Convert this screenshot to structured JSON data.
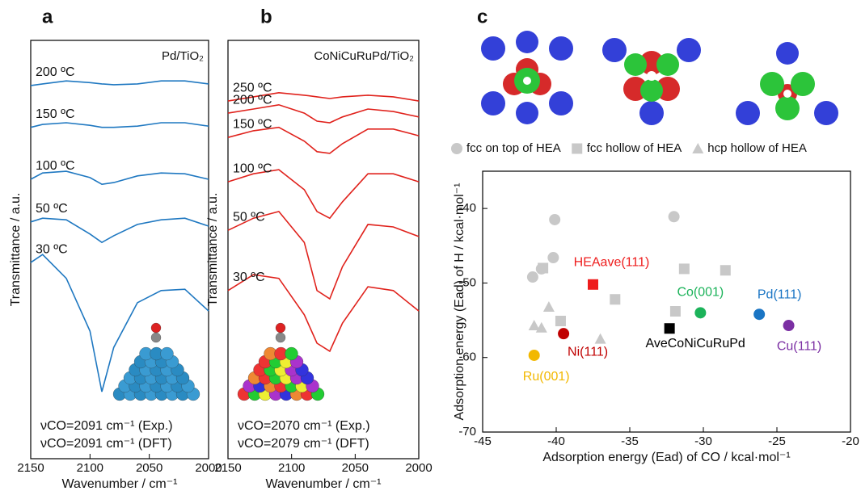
{
  "chart_data": [
    {
      "type": "line",
      "panel_label": "a",
      "xlabel": "Wavenumber / cm⁻¹",
      "ylabel": "Transmittance / a.u.",
      "annotations": [
        "Pd/TiO₂",
        "νCO=2091 cm⁻¹ (Exp.)",
        "νCO=2091 cm⁻¹ (DFT)"
      ],
      "xlim": [
        2150,
        2000
      ],
      "xticks": [
        2150,
        2100,
        2050,
        2000
      ],
      "ylim": [
        0,
        100
      ],
      "x": [
        2150,
        2140,
        2120,
        2100,
        2090,
        2080,
        2060,
        2040,
        2020,
        2000
      ],
      "series": [
        {
          "name": "200 ºC",
          "color": "#1f78c1",
          "values": [
            89.2,
            89.6,
            90.3,
            89.9,
            89.6,
            89.4,
            89.6,
            90.3,
            90.3,
            89.6
          ]
        },
        {
          "name": "150 ºC",
          "color": "#1f78c1",
          "values": [
            79.2,
            79.9,
            80.3,
            79.7,
            79.2,
            79.2,
            79.5,
            80.3,
            80.3,
            79.5
          ]
        },
        {
          "name": "100 ºC",
          "color": "#1f78c1",
          "values": [
            66.8,
            68.3,
            68.7,
            67.2,
            65.6,
            66.0,
            67.6,
            68.3,
            68.1,
            66.8
          ]
        },
        {
          "name": "50 ºC",
          "color": "#1f78c1",
          "values": [
            56.6,
            57.5,
            57.1,
            53.7,
            51.7,
            53.3,
            56.0,
            57.1,
            57.5,
            55.6
          ]
        },
        {
          "name": "30 ºC",
          "color": "#1f78c1",
          "values": [
            46.9,
            48.8,
            43.1,
            30.5,
            16.0,
            26.6,
            37.3,
            40.2,
            40.5,
            35.3
          ]
        }
      ]
    },
    {
      "type": "line",
      "panel_label": "b",
      "xlabel": "Wavenumber / cm⁻¹",
      "ylabel": "Transmittance / a.u.",
      "annotations": [
        "CoNiCuRuPd/TiO₂",
        "νCO=2070 cm⁻¹ (Exp.)",
        "νCO=2079 cm⁻¹ (DFT)"
      ],
      "xlim": [
        2150,
        2000
      ],
      "xticks": [
        2150,
        2100,
        2050,
        2000
      ],
      "ylim": [
        0,
        100
      ],
      "x": [
        2150,
        2130,
        2110,
        2090,
        2080,
        2070,
        2060,
        2040,
        2020,
        2000
      ],
      "series": [
        {
          "name": "250 ºC",
          "color": "#e0221c",
          "values": [
            85.5,
            86.5,
            87.5,
            86.9,
            86.5,
            86.1,
            86.5,
            86.9,
            86.5,
            85.5
          ]
        },
        {
          "name": "200 ºC",
          "color": "#e0221c",
          "values": [
            82.6,
            83.6,
            84.6,
            82.6,
            80.7,
            80.3,
            81.7,
            83.6,
            83.0,
            81.7
          ]
        },
        {
          "name": "150 ºC",
          "color": "#e0221c",
          "values": [
            76.8,
            78.4,
            79.2,
            75.9,
            73.4,
            73.0,
            75.3,
            78.8,
            78.8,
            77.2
          ]
        },
        {
          "name": "100 ºC",
          "color": "#e0221c",
          "values": [
            66.2,
            68.1,
            69.1,
            64.3,
            59.1,
            57.5,
            61.4,
            68.1,
            68.1,
            66.2
          ]
        },
        {
          "name": "50 ºC",
          "color": "#e0221c",
          "values": [
            54.6,
            57.5,
            59.1,
            51.7,
            40.2,
            38.2,
            45.9,
            56.0,
            55.4,
            53.1
          ]
        },
        {
          "name": "30 ºC",
          "color": "#e0221c",
          "values": [
            40.2,
            44.0,
            43.1,
            34.4,
            27.6,
            25.7,
            32.4,
            41.1,
            40.2,
            35.3
          ]
        }
      ]
    },
    {
      "type": "scatter",
      "panel_label": "c",
      "xlabel": "Adsorption energy (Ead) of CO / kcal·mol⁻¹",
      "ylabel": "Adsorption energy (Ead) of H / kcal·mol⁻¹",
      "xlim": [
        -45,
        -20
      ],
      "xticks": [
        -45,
        -40,
        -35,
        -30,
        -25,
        -20
      ],
      "ylim": [
        -70,
        -35
      ],
      "yticks": [
        -70,
        -60,
        -50,
        -40
      ],
      "legend": "top",
      "series": [
        {
          "name": "fcc on top of HEA",
          "color": "#c8c8c8",
          "marker": "circle",
          "legend": true,
          "x": [
            -41.6,
            -40.1,
            -40.2,
            -32.0,
            -41.0
          ],
          "y": [
            -49.2,
            -41.5,
            -46.6,
            -41.1,
            -48.1
          ]
        },
        {
          "name": "fcc hollow of HEA",
          "color": "#c8c8c8",
          "marker": "square",
          "legend": true,
          "x": [
            -31.3,
            -28.5,
            -36.0,
            -31.9,
            -39.7,
            -40.9
          ],
          "y": [
            -48.1,
            -48.3,
            -52.2,
            -53.8,
            -55.1,
            -48.0
          ]
        },
        {
          "name": "hcp hollow of HEA",
          "color": "#c8c8c8",
          "marker": "triangle",
          "legend": true,
          "x": [
            -40.5,
            -41.5,
            -41.0,
            -37.0
          ],
          "y": [
            -53.2,
            -55.7,
            -56.0,
            -57.5
          ]
        },
        {
          "name": "HEAave(111)",
          "color": "#ee1c1c",
          "marker": "square",
          "x": [
            -37.5
          ],
          "y": [
            -50.2
          ]
        },
        {
          "name": "Co(001)",
          "color": "#1cb35a",
          "marker": "circle",
          "x": [
            -30.2
          ],
          "y": [
            -54.0
          ]
        },
        {
          "name": "Pd(111)",
          "color": "#1a75c4",
          "marker": "circle",
          "x": [
            -26.2
          ],
          "y": [
            -54.2
          ]
        },
        {
          "name": "Cu(111)",
          "color": "#7b2fa3",
          "marker": "circle",
          "x": [
            -24.2
          ],
          "y": [
            -55.7
          ]
        },
        {
          "name": "AveCoNiCuRuPd",
          "color": "#000000",
          "marker": "square",
          "x": [
            -32.3
          ],
          "y": [
            -56.1
          ]
        },
        {
          "name": "Ni(111)",
          "color": "#c00000",
          "marker": "circle",
          "x": [
            -39.5
          ],
          "y": [
            -56.8
          ]
        },
        {
          "name": "Ru(001)",
          "color": "#f2b800",
          "marker": "circle",
          "x": [
            -41.5
          ],
          "y": [
            -59.7
          ]
        }
      ]
    }
  ]
}
